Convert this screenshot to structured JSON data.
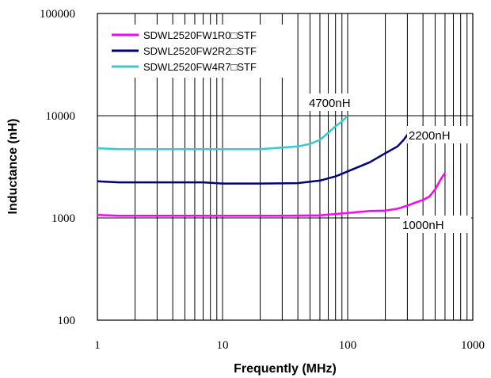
{
  "chart_data": {
    "type": "line",
    "xlabel": "Frequently (MHz)",
    "ylabel": "Inductance (nH)",
    "x_scale": "log",
    "y_scale": "log",
    "xlim": [
      1,
      1000
    ],
    "ylim": [
      100,
      100000
    ],
    "x_ticks": [
      "1",
      "10",
      "100",
      "1000"
    ],
    "y_ticks": [
      "100",
      "1000",
      "10000",
      "100000"
    ],
    "grid": true,
    "legend_position": "top-left",
    "series": [
      {
        "name": "SDWL2520FW1R0□STF",
        "color": "#ff00ff",
        "points": [
          [
            1,
            1070
          ],
          [
            1.5,
            1050
          ],
          [
            3,
            1050
          ],
          [
            10,
            1050
          ],
          [
            30,
            1050
          ],
          [
            60,
            1060
          ],
          [
            100,
            1120
          ],
          [
            150,
            1170
          ],
          [
            200,
            1180
          ],
          [
            250,
            1230
          ],
          [
            300,
            1320
          ],
          [
            350,
            1420
          ],
          [
            400,
            1500
          ],
          [
            450,
            1620
          ],
          [
            500,
            1900
          ],
          [
            550,
            2350
          ],
          [
            600,
            2750
          ]
        ]
      },
      {
        "name": "SDWL2520FW2R2□STF",
        "color": "#000080",
        "points": [
          [
            1,
            2280
          ],
          [
            1.5,
            2230
          ],
          [
            3,
            2230
          ],
          [
            7,
            2230
          ],
          [
            10,
            2170
          ],
          [
            20,
            2170
          ],
          [
            40,
            2190
          ],
          [
            60,
            2320
          ],
          [
            80,
            2550
          ],
          [
            100,
            2850
          ],
          [
            150,
            3500
          ],
          [
            200,
            4300
          ],
          [
            250,
            5000
          ],
          [
            280,
            5800
          ],
          [
            300,
            6500
          ],
          [
            320,
            7000
          ]
        ]
      },
      {
        "name": "SDWL2520FW4R7□STF",
        "color": "#33cccc",
        "points": [
          [
            1,
            4800
          ],
          [
            1.5,
            4700
          ],
          [
            3,
            4700
          ],
          [
            10,
            4700
          ],
          [
            20,
            4700
          ],
          [
            25,
            4800
          ],
          [
            40,
            5000
          ],
          [
            50,
            5300
          ],
          [
            60,
            5800
          ],
          [
            70,
            6800
          ],
          [
            80,
            7900
          ],
          [
            90,
            8800
          ],
          [
            100,
            10000
          ]
        ]
      }
    ],
    "annotations": [
      {
        "text": "4700nH",
        "x": 105,
        "y": 15000
      },
      {
        "text": "2200nH",
        "x": 330,
        "y": 6300
      },
      {
        "text": "1000nH",
        "x": 260,
        "y": 900
      }
    ]
  }
}
